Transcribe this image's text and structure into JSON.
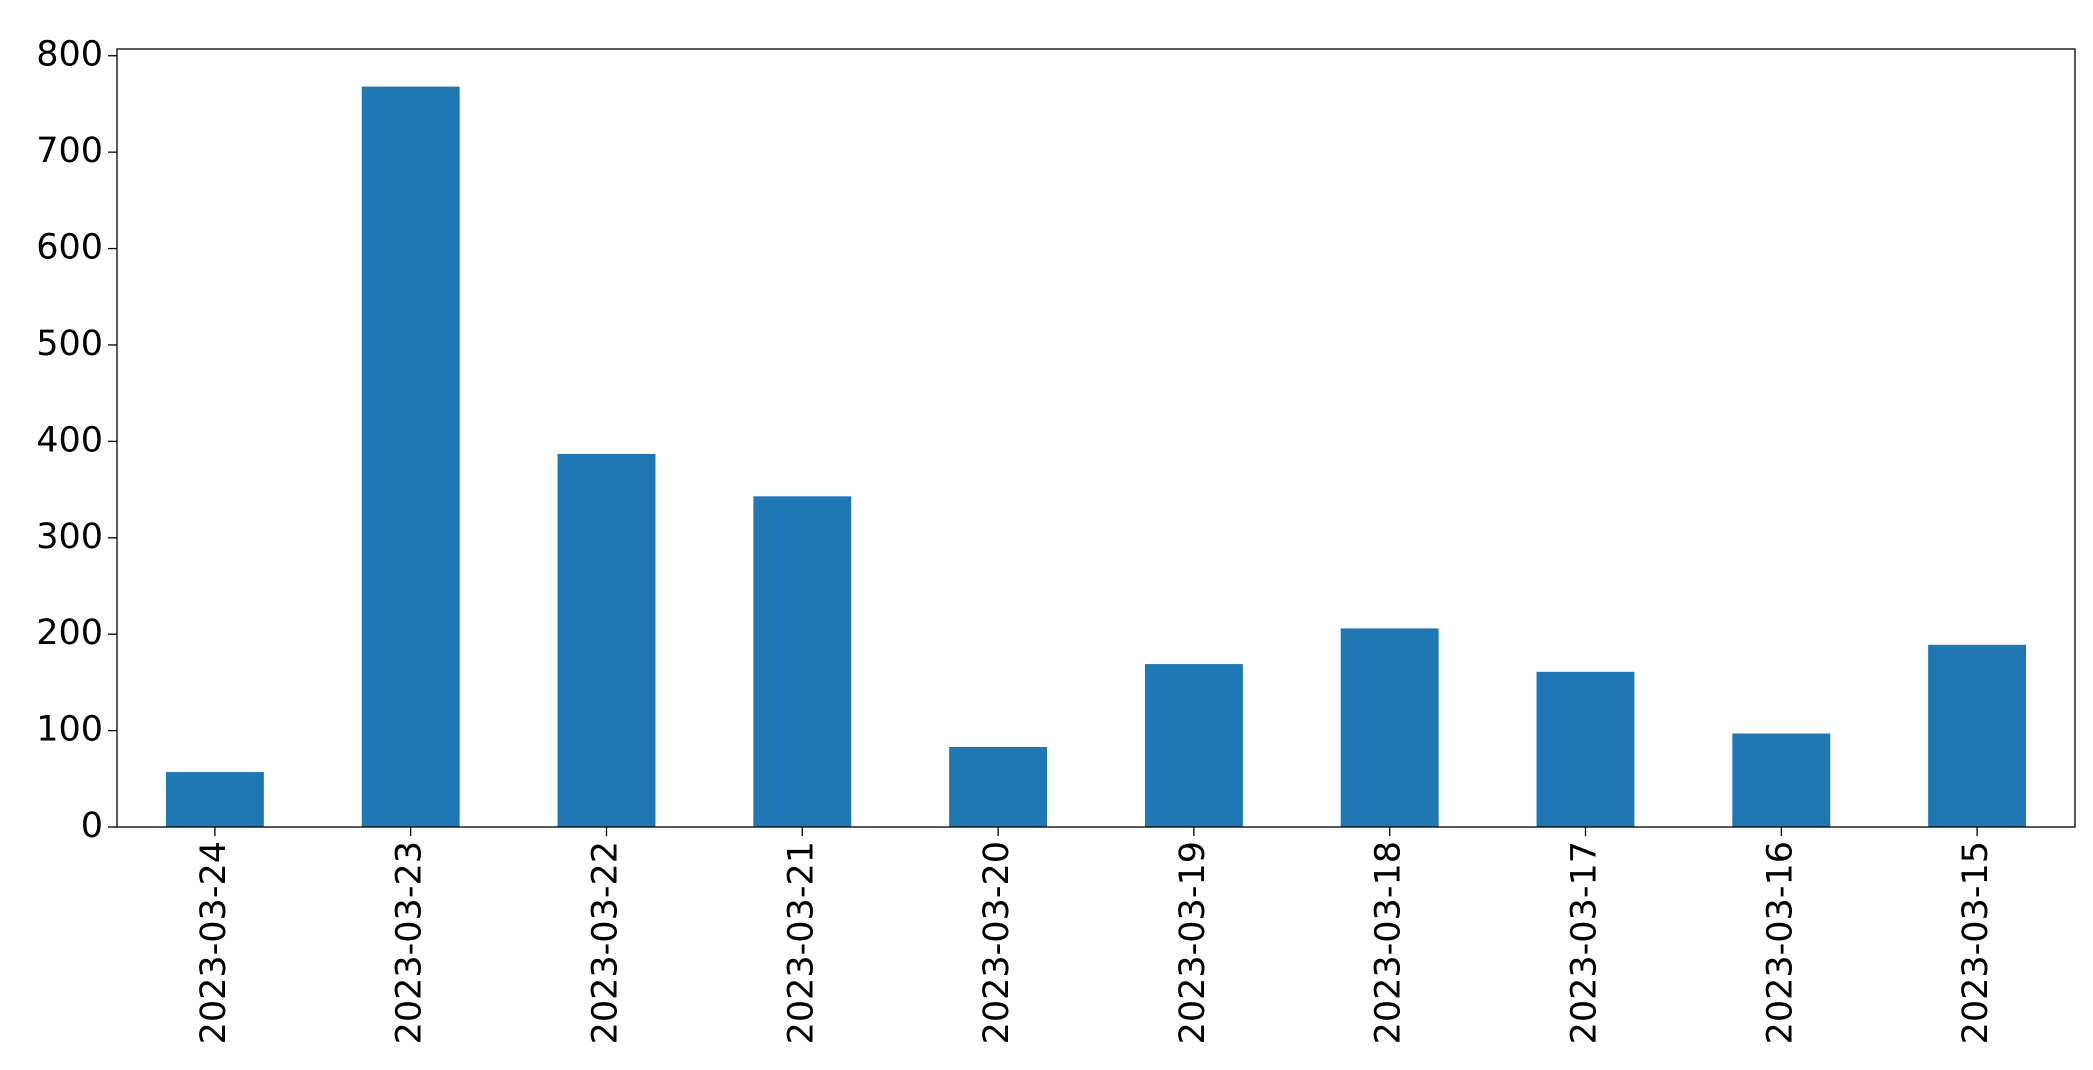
{
  "chart_data": {
    "type": "bar",
    "categories": [
      "2023-03-24",
      "2023-03-23",
      "2023-03-22",
      "2023-03-21",
      "2023-03-20",
      "2023-03-19",
      "2023-03-18",
      "2023-03-17",
      "2023-03-16",
      "2023-03-15"
    ],
    "values": [
      57,
      768,
      387,
      343,
      83,
      169,
      206,
      161,
      97,
      189
    ],
    "color": "#1f77b4",
    "ylim": [
      0,
      807
    ],
    "yticks": [
      0,
      100,
      200,
      300,
      400,
      500,
      600,
      700,
      800
    ],
    "grid": false
  }
}
